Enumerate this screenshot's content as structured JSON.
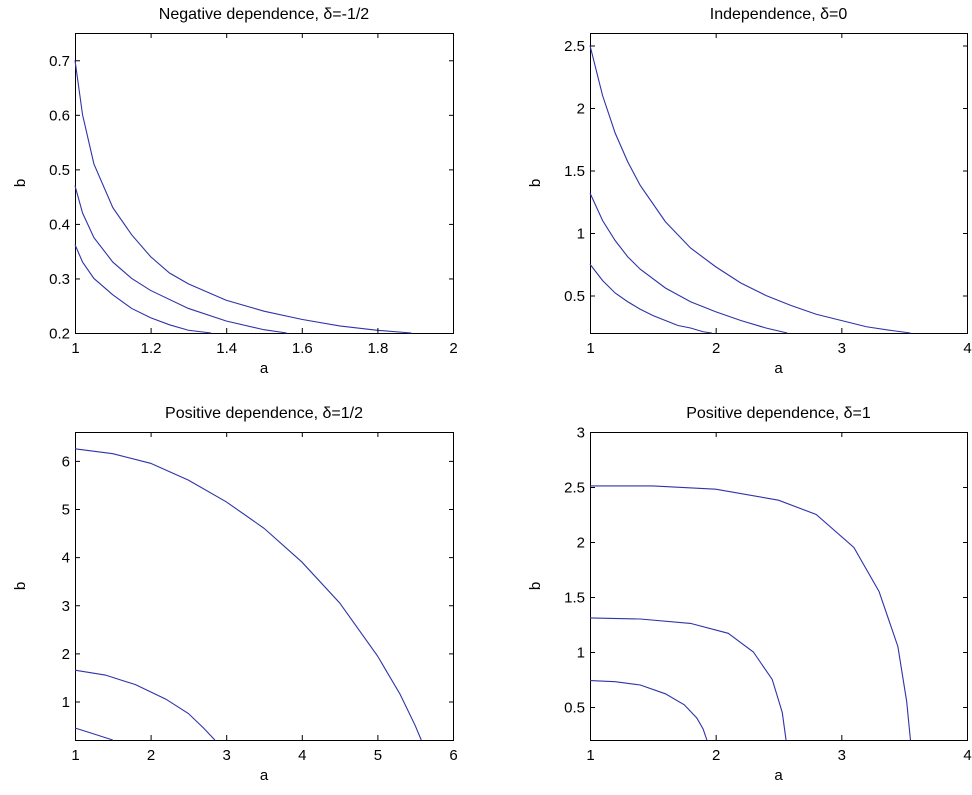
{
  "colors": {
    "curve": "#2e33a8",
    "axis": "#000000",
    "background": "#ffffff"
  },
  "chart_data": [
    {
      "type": "line",
      "title": "Negative dependence, δ=-1/2",
      "xlabel": "a",
      "ylabel": "b",
      "xlim": [
        1,
        2
      ],
      "ylim": [
        0.2,
        0.75
      ],
      "xticks": [
        1,
        1.2,
        1.4,
        1.6,
        1.8,
        2
      ],
      "xtick_labels": [
        "1",
        "1.2",
        "1.4",
        "1.6",
        "1.8",
        "2"
      ],
      "yticks": [
        0.2,
        0.3,
        0.4,
        0.5,
        0.6,
        0.7
      ],
      "ytick_labels": [
        "0.2",
        "0.3",
        "0.4",
        "0.5",
        "0.6",
        "0.7"
      ],
      "series": [
        {
          "x": [
            1.0,
            1.02,
            1.05,
            1.1,
            1.15,
            1.2,
            1.25,
            1.3,
            1.36
          ],
          "y": [
            0.362,
            0.33,
            0.3,
            0.27,
            0.245,
            0.228,
            0.215,
            0.205,
            0.2
          ]
        },
        {
          "x": [
            1.0,
            1.02,
            1.05,
            1.1,
            1.15,
            1.2,
            1.3,
            1.4,
            1.5,
            1.56
          ],
          "y": [
            0.47,
            0.42,
            0.375,
            0.33,
            0.3,
            0.278,
            0.245,
            0.222,
            0.206,
            0.2
          ]
        },
        {
          "x": [
            1.0,
            1.02,
            1.05,
            1.1,
            1.15,
            1.2,
            1.25,
            1.3,
            1.4,
            1.5,
            1.6,
            1.7,
            1.8,
            1.89
          ],
          "y": [
            0.7,
            0.6,
            0.51,
            0.43,
            0.38,
            0.34,
            0.31,
            0.29,
            0.26,
            0.24,
            0.225,
            0.213,
            0.205,
            0.2
          ]
        }
      ]
    },
    {
      "type": "line",
      "title": "Independence, δ=0",
      "xlabel": "a",
      "ylabel": "b",
      "xlim": [
        1,
        4
      ],
      "ylim": [
        0.2,
        2.6
      ],
      "xticks": [
        1,
        2,
        3,
        4
      ],
      "xtick_labels": [
        "1",
        "2",
        "3",
        "4"
      ],
      "yticks": [
        0.5,
        1,
        1.5,
        2,
        2.5
      ],
      "ytick_labels": [
        "0.5",
        "1",
        "1.5",
        "2",
        "2.5"
      ],
      "series": [
        {
          "x": [
            1.0,
            1.1,
            1.2,
            1.3,
            1.4,
            1.5,
            1.6,
            1.7,
            1.8,
            1.9,
            1.97
          ],
          "y": [
            0.75,
            0.62,
            0.52,
            0.45,
            0.39,
            0.34,
            0.3,
            0.26,
            0.24,
            0.21,
            0.2
          ]
        },
        {
          "x": [
            1.0,
            1.1,
            1.2,
            1.3,
            1.4,
            1.6,
            1.8,
            2.0,
            2.2,
            2.4,
            2.57
          ],
          "y": [
            1.32,
            1.1,
            0.94,
            0.81,
            0.71,
            0.56,
            0.45,
            0.37,
            0.3,
            0.24,
            0.2
          ]
        },
        {
          "x": [
            1.0,
            1.1,
            1.2,
            1.3,
            1.4,
            1.6,
            1.8,
            2.0,
            2.2,
            2.4,
            2.6,
            2.8,
            3.0,
            3.2,
            3.4,
            3.55
          ],
          "y": [
            2.5,
            2.1,
            1.8,
            1.57,
            1.38,
            1.09,
            0.88,
            0.73,
            0.6,
            0.5,
            0.42,
            0.35,
            0.3,
            0.25,
            0.22,
            0.2
          ]
        }
      ]
    },
    {
      "type": "line",
      "title": "Positive dependence, δ=1/2",
      "xlabel": "a",
      "ylabel": "b",
      "xlim": [
        1,
        6
      ],
      "ylim": [
        0.2,
        6.6
      ],
      "xticks": [
        1,
        2,
        3,
        4,
        5,
        6
      ],
      "xtick_labels": [
        "1",
        "2",
        "3",
        "4",
        "5",
        "6"
      ],
      "yticks": [
        1,
        2,
        3,
        4,
        5,
        6
      ],
      "ytick_labels": [
        "1",
        "2",
        "3",
        "4",
        "5",
        "6"
      ],
      "series": [
        {
          "x": [
            1.0,
            1.2,
            1.4,
            1.5
          ],
          "y": [
            0.45,
            0.35,
            0.25,
            0.2
          ]
        },
        {
          "x": [
            1.0,
            1.4,
            1.8,
            2.2,
            2.5,
            2.7,
            2.85
          ],
          "y": [
            1.65,
            1.55,
            1.35,
            1.05,
            0.75,
            0.45,
            0.2
          ]
        },
        {
          "x": [
            1.0,
            1.5,
            2.0,
            2.5,
            3.0,
            3.5,
            4.0,
            4.5,
            5.0,
            5.3,
            5.5,
            5.58
          ],
          "y": [
            6.25,
            6.15,
            5.95,
            5.6,
            5.15,
            4.6,
            3.9,
            3.05,
            1.95,
            1.15,
            0.5,
            0.2
          ]
        }
      ]
    },
    {
      "type": "line",
      "title": "Positive dependence, δ=1",
      "xlabel": "a",
      "ylabel": "b",
      "xlim": [
        1,
        4
      ],
      "ylim": [
        0.2,
        3
      ],
      "xticks": [
        1,
        2,
        3,
        4
      ],
      "xtick_labels": [
        "1",
        "2",
        "3",
        "4"
      ],
      "yticks": [
        0.5,
        1,
        1.5,
        2,
        2.5,
        3
      ],
      "ytick_labels": [
        "0.5",
        "1",
        "1.5",
        "2",
        "2.5",
        "3"
      ],
      "series": [
        {
          "x": [
            1.0,
            1.2,
            1.4,
            1.6,
            1.75,
            1.85,
            1.9,
            1.93
          ],
          "y": [
            0.74,
            0.73,
            0.7,
            0.62,
            0.52,
            0.4,
            0.3,
            0.2
          ]
        },
        {
          "x": [
            1.0,
            1.4,
            1.8,
            2.1,
            2.3,
            2.45,
            2.53,
            2.56
          ],
          "y": [
            1.31,
            1.3,
            1.26,
            1.17,
            1.0,
            0.75,
            0.45,
            0.2
          ]
        },
        {
          "x": [
            1.0,
            1.5,
            2.0,
            2.5,
            2.8,
            3.1,
            3.3,
            3.45,
            3.52,
            3.55
          ],
          "y": [
            2.51,
            2.51,
            2.48,
            2.38,
            2.25,
            1.95,
            1.55,
            1.05,
            0.55,
            0.2
          ]
        }
      ]
    }
  ]
}
